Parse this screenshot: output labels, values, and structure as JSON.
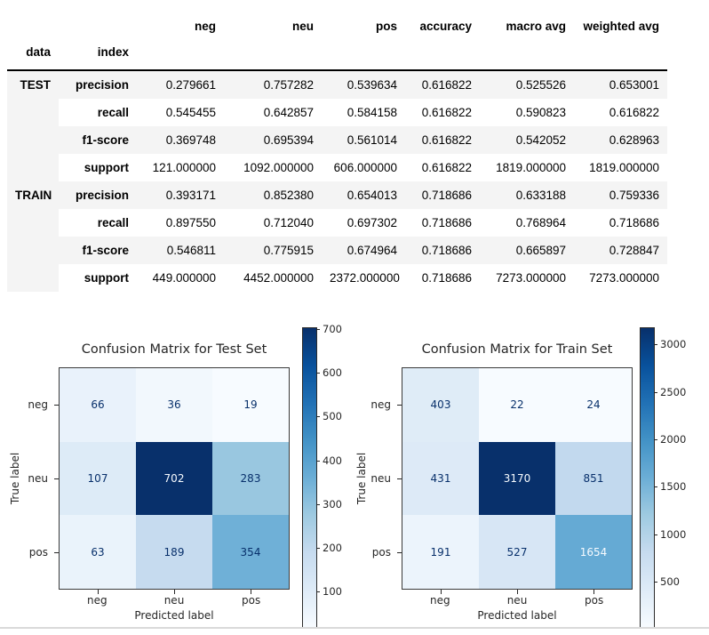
{
  "table": {
    "index_names": [
      "data",
      "index"
    ],
    "columns": [
      "neg",
      "neu",
      "pos",
      "accuracy",
      "macro avg",
      "weighted avg"
    ],
    "groups": [
      {
        "name": "TEST",
        "rows": [
          {
            "index": "precision",
            "values": [
              "0.279661",
              "0.757282",
              "0.539634",
              "0.616822",
              "0.525526",
              "0.653001"
            ]
          },
          {
            "index": "recall",
            "values": [
              "0.545455",
              "0.642857",
              "0.584158",
              "0.616822",
              "0.590823",
              "0.616822"
            ]
          },
          {
            "index": "f1-score",
            "values": [
              "0.369748",
              "0.695394",
              "0.561014",
              "0.616822",
              "0.542052",
              "0.628963"
            ]
          },
          {
            "index": "support",
            "values": [
              "121.000000",
              "1092.000000",
              "606.000000",
              "0.616822",
              "1819.000000",
              "1819.000000"
            ]
          }
        ]
      },
      {
        "name": "TRAIN",
        "rows": [
          {
            "index": "precision",
            "values": [
              "0.393171",
              "0.852380",
              "0.654013",
              "0.718686",
              "0.633188",
              "0.759336"
            ]
          },
          {
            "index": "recall",
            "values": [
              "0.897550",
              "0.712040",
              "0.697302",
              "0.718686",
              "0.768964",
              "0.718686"
            ]
          },
          {
            "index": "f1-score",
            "values": [
              "0.546811",
              "0.775915",
              "0.674964",
              "0.718686",
              "0.665897",
              "0.728847"
            ]
          },
          {
            "index": "support",
            "values": [
              "449.000000",
              "4452.000000",
              "2372.000000",
              "0.718686",
              "7273.000000",
              "7273.000000"
            ]
          }
        ]
      }
    ]
  },
  "chart_data": [
    {
      "type": "heatmap",
      "title": "Confusion Matrix for Test Set",
      "xlabel": "Predicted label",
      "ylabel": "True label",
      "x_tick_labels": [
        "neg",
        "neu",
        "pos"
      ],
      "y_tick_labels": [
        "neg",
        "neu",
        "pos"
      ],
      "matrix": [
        [
          66,
          36,
          19
        ],
        [
          107,
          702,
          283
        ],
        [
          63,
          189,
          354
        ]
      ],
      "colormap": "Blues",
      "vmin": 19,
      "vmax": 702,
      "colorbar_ticks": [
        100,
        200,
        300,
        400,
        500,
        600,
        700
      ],
      "legend_position": "right-colorbar",
      "grid": false
    },
    {
      "type": "heatmap",
      "title": "Confusion Matrix for Train Set",
      "xlabel": "Predicted label",
      "ylabel": "True label",
      "x_tick_labels": [
        "neg",
        "neu",
        "pos"
      ],
      "y_tick_labels": [
        "neg",
        "neu",
        "pos"
      ],
      "matrix": [
        [
          403,
          22,
          24
        ],
        [
          431,
          3170,
          851
        ],
        [
          191,
          527,
          1654
        ]
      ],
      "colormap": "Blues",
      "vmin": 22,
      "vmax": 3170,
      "colorbar_ticks": [
        500,
        1000,
        1500,
        2000,
        2500,
        3000
      ],
      "legend_position": "right-colorbar",
      "grid": false
    }
  ],
  "colors": {
    "annotation_dark": "#08306b",
    "annotation_light": "#f7fbff",
    "row_stripe": "#f4f4f4",
    "header_rule": "#000000",
    "spine": "#3a3a3a",
    "tick_text": "#262626",
    "bottom_border": "#d9d9d9"
  }
}
